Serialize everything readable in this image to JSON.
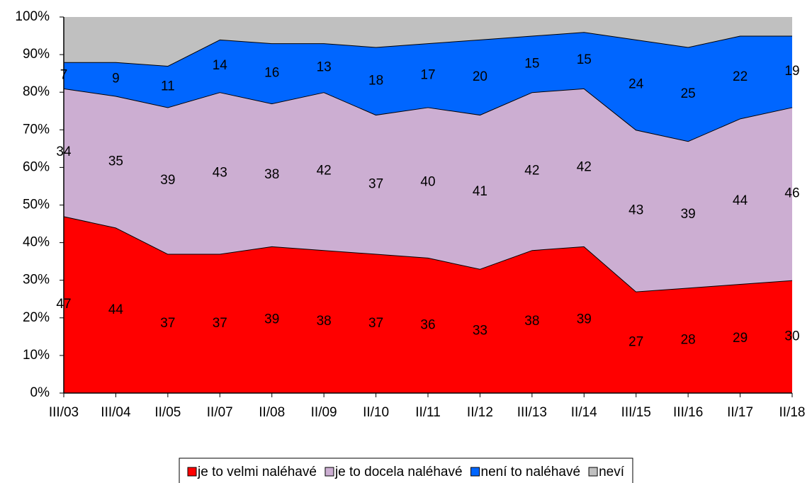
{
  "chart_data": {
    "type": "stacked_area",
    "categories": [
      "III/03",
      "III/04",
      "II/05",
      "II/07",
      "II/08",
      "II/09",
      "II/10",
      "II/11",
      "II/12",
      "III/13",
      "II/14",
      "III/15",
      "III/16",
      "II/17",
      "II/18"
    ],
    "series": [
      {
        "name": "je to velmi naléhavé",
        "color": "#ff0000",
        "data_labels": true,
        "values": [
          47,
          44,
          37,
          37,
          39,
          38,
          37,
          36,
          33,
          38,
          39,
          27,
          28,
          29,
          30
        ]
      },
      {
        "name": "je to docela naléhavé",
        "color": "#ccaed2",
        "data_labels": true,
        "values": [
          34,
          35,
          39,
          43,
          38,
          42,
          37,
          40,
          41,
          42,
          42,
          43,
          39,
          44,
          46
        ]
      },
      {
        "name": "není to naléhavé",
        "color": "#0066ff",
        "data_labels": true,
        "values": [
          7,
          9,
          11,
          14,
          16,
          13,
          18,
          17,
          20,
          15,
          15,
          24,
          25,
          22,
          19
        ]
      },
      {
        "name": "neví",
        "color": "#c0c0c0",
        "data_labels": false,
        "values": [
          12,
          12,
          13,
          6,
          7,
          7,
          8,
          7,
          6,
          5,
          4,
          6,
          8,
          5,
          5
        ]
      }
    ],
    "ylim": [
      0,
      100
    ],
    "yticks": [
      {
        "value": 0,
        "label": "0%"
      },
      {
        "value": 10,
        "label": "10%"
      },
      {
        "value": 20,
        "label": "20%"
      },
      {
        "value": 30,
        "label": "30%"
      },
      {
        "value": 40,
        "label": "40%"
      },
      {
        "value": 50,
        "label": "50%"
      },
      {
        "value": 60,
        "label": "60%"
      },
      {
        "value": 70,
        "label": "70%"
      },
      {
        "value": 80,
        "label": "80%"
      },
      {
        "value": 90,
        "label": "90%"
      },
      {
        "value": 100,
        "label": "100%"
      }
    ],
    "legend": "bottom"
  }
}
